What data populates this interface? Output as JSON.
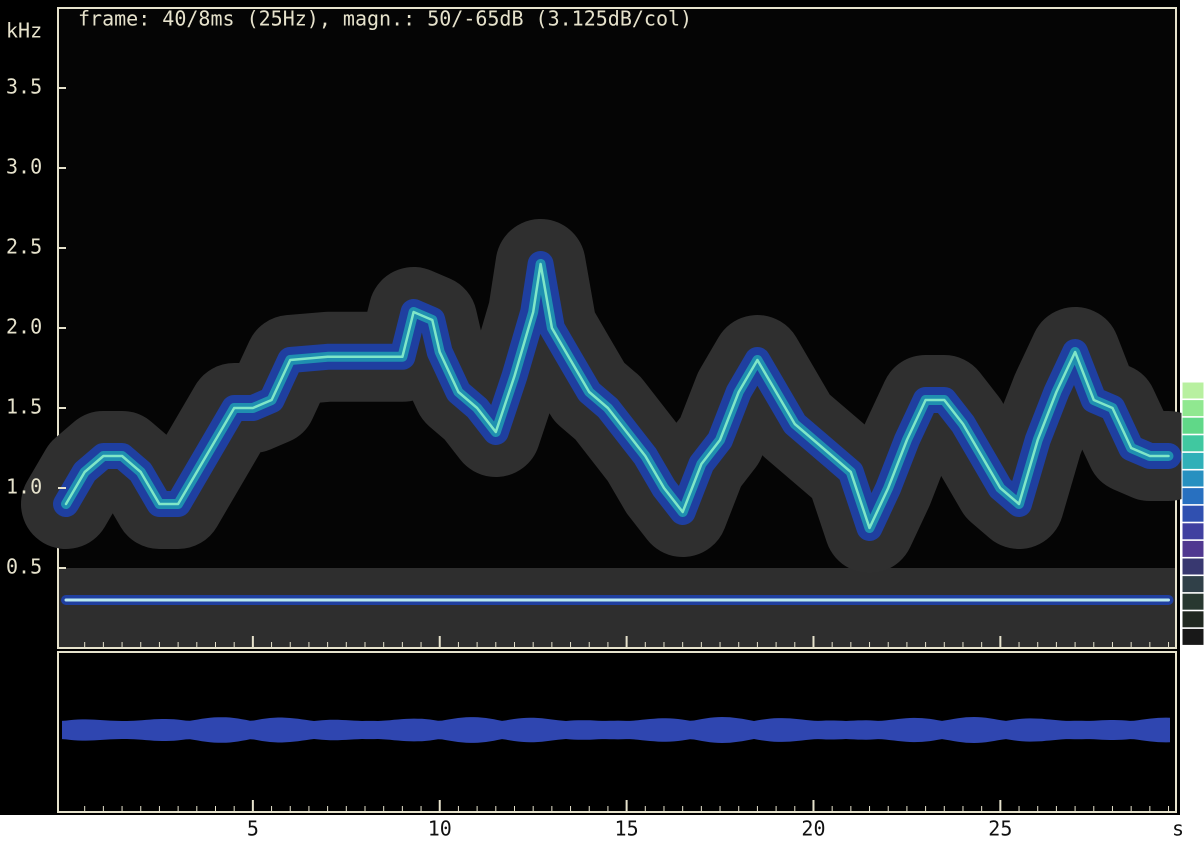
{
  "chart_data": {
    "type": "spectrogram",
    "title": "frame: 40/8ms (25Hz),  magn.: 50/-65dB (3.125dB/col)",
    "y_label": "kHz",
    "x_label": "s",
    "xlim": [
      0,
      29.7
    ],
    "ylim": [
      0,
      4
    ],
    "xticks": [
      5,
      10,
      15,
      20,
      25
    ],
    "yticks": [
      0.5,
      {
        "value": 1,
        "label": "1.0"
      },
      1.5,
      {
        "value": 2,
        "label": "2.0"
      },
      2.5,
      {
        "value": 3,
        "label": "3.0"
      },
      3.5
    ],
    "x": [
      0,
      0.5,
      1,
      1.5,
      2,
      2.5,
      3,
      3.5,
      4,
      4.5,
      5,
      5.5,
      6,
      7,
      8,
      9,
      9.3,
      9.8,
      10,
      10.5,
      11,
      11.5,
      12,
      12.5,
      12.7,
      13,
      13.5,
      14,
      14.5,
      15,
      15.5,
      16,
      16.5,
      17,
      17.5,
      18,
      18.5,
      19,
      19.5,
      20,
      20.5,
      21,
      21.5,
      22,
      22.5,
      23,
      23.5,
      24,
      24.5,
      25,
      25.5,
      26,
      26.5,
      27,
      27.5,
      28,
      28.5,
      29,
      29.5
    ],
    "series": [
      {
        "color": "#7fe6c8",
        "values": [
          0.9,
          1.1,
          1.2,
          1.2,
          1.1,
          0.9,
          0.9,
          1.1,
          1.3,
          1.5,
          1.5,
          1.55,
          1.8,
          1.82,
          1.82,
          1.82,
          2.1,
          2.05,
          1.85,
          1.6,
          1.5,
          1.35,
          1.7,
          2.1,
          2.4,
          2.0,
          1.8,
          1.6,
          1.5,
          1.35,
          1.2,
          1.0,
          0.85,
          1.15,
          1.3,
          1.6,
          1.8,
          1.6,
          1.4,
          1.3,
          1.2,
          1.1,
          0.75,
          1.0,
          1.3,
          1.55,
          1.55,
          1.4,
          1.2,
          1.0,
          0.9,
          1.3,
          1.6,
          1.85,
          1.55,
          1.5,
          1.25,
          1.2,
          1.2
        ]
      },
      {
        "color": "#b8e8f0",
        "values": [
          0.3,
          0.3,
          0.3,
          0.3,
          0.3,
          0.3,
          0.3,
          0.3,
          0.3,
          0.3,
          0.3,
          0.3,
          0.3,
          0.3,
          0.3,
          0.3,
          0.3,
          0.3,
          0.3,
          0.3,
          0.3,
          0.3,
          0.3,
          0.3,
          0.3,
          0.3,
          0.3,
          0.3,
          0.3,
          0.3,
          0.3,
          0.3,
          0.3,
          0.3,
          0.3,
          0.3,
          0.3,
          0.3,
          0.3,
          0.3,
          0.3,
          0.3,
          0.3,
          0.3,
          0.3,
          0.3,
          0.3,
          0.3,
          0.3,
          0.3,
          0.3,
          0.3,
          0.3,
          0.3,
          0.3,
          0.3,
          0.3,
          0.3,
          0.3
        ]
      }
    ]
  }
}
